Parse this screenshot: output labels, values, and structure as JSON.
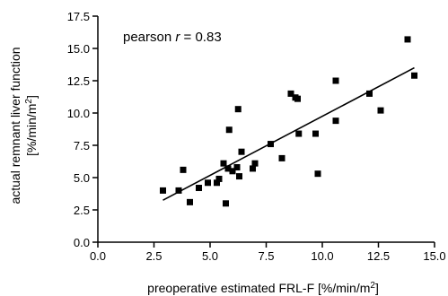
{
  "chart_data": {
    "type": "scatter",
    "annotation": {
      "prefix": "pearson ",
      "var": "r",
      "suffix": " = 0.83"
    },
    "xlabel": {
      "text": "preoperative estimated FRL-F [%/min/m",
      "sup": "2",
      "close": "]"
    },
    "ylabel": {
      "line1": "actual remnant liver function",
      "line2": {
        "text": "[%/min/m",
        "sup": "2",
        "close": "]"
      }
    },
    "xlim": [
      0,
      15
    ],
    "ylim": [
      0,
      17.5
    ],
    "xticks": [
      "0.0",
      "2.5",
      "5.0",
      "7.5",
      "10.0",
      "12.5",
      "15.0"
    ],
    "yticks": [
      "0.0",
      "2.5",
      "5.0",
      "7.5",
      "10.0",
      "12.5",
      "15.0",
      "17.5"
    ],
    "grid": false,
    "marker": "square",
    "color": "#000000",
    "points": [
      [
        2.9,
        4.0
      ],
      [
        3.6,
        4.0
      ],
      [
        3.8,
        5.6
      ],
      [
        4.1,
        3.1
      ],
      [
        4.5,
        4.2
      ],
      [
        4.9,
        4.6
      ],
      [
        5.3,
        4.6
      ],
      [
        5.4,
        4.9
      ],
      [
        5.6,
        6.1
      ],
      [
        5.7,
        3.0
      ],
      [
        5.8,
        5.7
      ],
      [
        5.85,
        8.7
      ],
      [
        6.0,
        5.5
      ],
      [
        6.2,
        5.8
      ],
      [
        6.25,
        10.3
      ],
      [
        6.3,
        5.1
      ],
      [
        6.4,
        7.0
      ],
      [
        6.9,
        5.7
      ],
      [
        7.0,
        6.1
      ],
      [
        7.7,
        7.6
      ],
      [
        8.2,
        6.5
      ],
      [
        8.6,
        11.5
      ],
      [
        8.8,
        11.2
      ],
      [
        8.9,
        11.1
      ],
      [
        8.95,
        8.4
      ],
      [
        9.7,
        8.4
      ],
      [
        9.8,
        5.3
      ],
      [
        10.6,
        9.4
      ],
      [
        10.6,
        12.5
      ],
      [
        12.1,
        11.5
      ],
      [
        12.6,
        10.2
      ],
      [
        13.8,
        15.7
      ],
      [
        14.1,
        12.9
      ]
    ],
    "regression_line": {
      "x": [
        2.9,
        14.1
      ],
      "y": [
        3.25,
        13.5
      ]
    }
  }
}
